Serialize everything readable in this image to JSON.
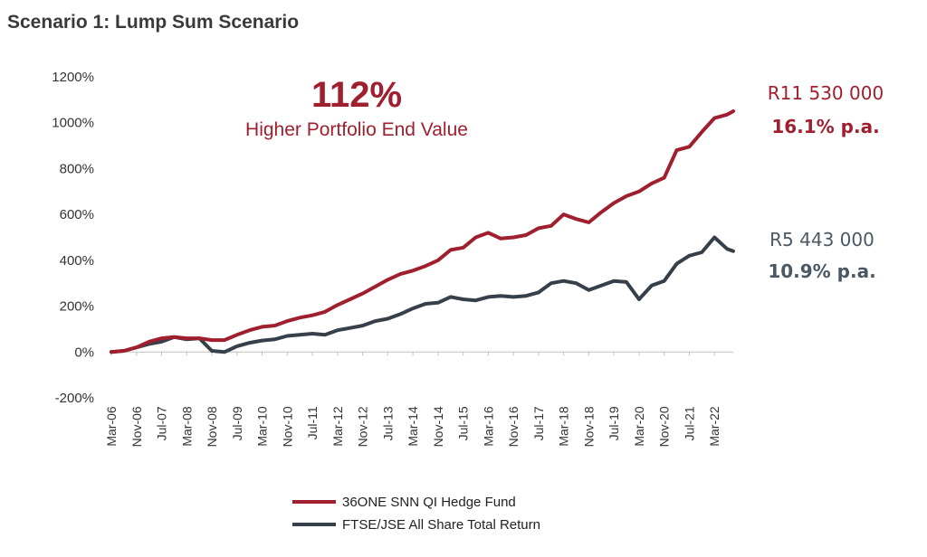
{
  "chart_data": {
    "type": "line",
    "title": "Scenario 1: Lump Sum Scenario",
    "xlabel": "",
    "ylabel": "",
    "ylim": [
      -200,
      1200
    ],
    "ytick_labels": [
      "1200%",
      "1000%",
      "800%",
      "600%",
      "400%",
      "200%",
      "0%",
      "-200%"
    ],
    "ytick_values": [
      1200,
      1000,
      800,
      600,
      400,
      200,
      0,
      -200
    ],
    "x_tick_labels": [
      "Mar-06",
      "Nov-06",
      "Jul-07",
      "Mar-08",
      "Nov-08",
      "Jul-09",
      "Mar-10",
      "Nov-10",
      "Jul-11",
      "Mar-12",
      "Nov-12",
      "Jul-13",
      "Mar-14",
      "Nov-14",
      "Jul-15",
      "Mar-16",
      "Nov-16",
      "Jul-17",
      "Mar-18",
      "Nov-18",
      "Jul-19",
      "Mar-20",
      "Nov-20",
      "Jul-21",
      "Mar-22"
    ],
    "x_range": [
      "Mar-06",
      "Sep-22"
    ],
    "grid": false,
    "legend_position": "bottom",
    "series": [
      {
        "name": "36ONE SNN QI Hedge Fund",
        "color": "#a01f2e",
        "points": [
          [
            "Mar-06",
            0
          ],
          [
            "Jul-06",
            5
          ],
          [
            "Nov-06",
            20
          ],
          [
            "Mar-07",
            45
          ],
          [
            "Jul-07",
            60
          ],
          [
            "Nov-07",
            65
          ],
          [
            "Mar-08",
            60
          ],
          [
            "Jul-08",
            60
          ],
          [
            "Nov-08",
            52
          ],
          [
            "Mar-09",
            52
          ],
          [
            "Jul-09",
            75
          ],
          [
            "Nov-09",
            95
          ],
          [
            "Mar-10",
            110
          ],
          [
            "Jul-10",
            115
          ],
          [
            "Nov-10",
            135
          ],
          [
            "Mar-11",
            150
          ],
          [
            "Jul-11",
            160
          ],
          [
            "Nov-11",
            175
          ],
          [
            "Mar-12",
            205
          ],
          [
            "Jul-12",
            230
          ],
          [
            "Nov-12",
            255
          ],
          [
            "Mar-13",
            285
          ],
          [
            "Jul-13",
            315
          ],
          [
            "Nov-13",
            340
          ],
          [
            "Mar-14",
            355
          ],
          [
            "Jul-14",
            375
          ],
          [
            "Nov-14",
            400
          ],
          [
            "Mar-15",
            445
          ],
          [
            "Jul-15",
            455
          ],
          [
            "Nov-15",
            500
          ],
          [
            "Mar-16",
            520
          ],
          [
            "Jul-16",
            495
          ],
          [
            "Nov-16",
            500
          ],
          [
            "Mar-17",
            510
          ],
          [
            "Jul-17",
            540
          ],
          [
            "Nov-17",
            550
          ],
          [
            "Mar-18",
            600
          ],
          [
            "Jul-18",
            580
          ],
          [
            "Nov-18",
            565
          ],
          [
            "Mar-19",
            610
          ],
          [
            "Jul-19",
            650
          ],
          [
            "Nov-19",
            680
          ],
          [
            "Mar-20",
            700
          ],
          [
            "Jul-20",
            735
          ],
          [
            "Nov-20",
            760
          ],
          [
            "Mar-21",
            880
          ],
          [
            "Jul-21",
            895
          ],
          [
            "Nov-21",
            960
          ],
          [
            "Mar-22",
            1020
          ],
          [
            "Jul-22",
            1035
          ],
          [
            "Sep-22",
            1050
          ]
        ],
        "end_value": "R11 530 000",
        "annual_return": "16.1% p.a."
      },
      {
        "name": "FTSE/JSE All Share Total Return",
        "color": "#36404a",
        "points": [
          [
            "Mar-06",
            0
          ],
          [
            "Jul-06",
            5
          ],
          [
            "Nov-06",
            20
          ],
          [
            "Mar-07",
            35
          ],
          [
            "Jul-07",
            45
          ],
          [
            "Nov-07",
            65
          ],
          [
            "Mar-08",
            55
          ],
          [
            "Jul-08",
            60
          ],
          [
            "Nov-08",
            5
          ],
          [
            "Mar-09",
            0
          ],
          [
            "Jul-09",
            25
          ],
          [
            "Nov-09",
            40
          ],
          [
            "Mar-10",
            50
          ],
          [
            "Jul-10",
            55
          ],
          [
            "Nov-10",
            70
          ],
          [
            "Mar-11",
            75
          ],
          [
            "Jul-11",
            80
          ],
          [
            "Nov-11",
            75
          ],
          [
            "Mar-12",
            95
          ],
          [
            "Jul-12",
            105
          ],
          [
            "Nov-12",
            115
          ],
          [
            "Mar-13",
            135
          ],
          [
            "Jul-13",
            145
          ],
          [
            "Nov-13",
            165
          ],
          [
            "Mar-14",
            190
          ],
          [
            "Jul-14",
            210
          ],
          [
            "Nov-14",
            215
          ],
          [
            "Mar-15",
            240
          ],
          [
            "Jul-15",
            230
          ],
          [
            "Nov-15",
            225
          ],
          [
            "Mar-16",
            240
          ],
          [
            "Jul-16",
            245
          ],
          [
            "Nov-16",
            240
          ],
          [
            "Mar-17",
            245
          ],
          [
            "Jul-17",
            260
          ],
          [
            "Nov-17",
            300
          ],
          [
            "Mar-18",
            310
          ],
          [
            "Jul-18",
            300
          ],
          [
            "Nov-18",
            270
          ],
          [
            "Mar-19",
            290
          ],
          [
            "Jul-19",
            310
          ],
          [
            "Nov-19",
            305
          ],
          [
            "Mar-20",
            230
          ],
          [
            "Jul-20",
            290
          ],
          [
            "Nov-20",
            310
          ],
          [
            "Mar-21",
            385
          ],
          [
            "Jul-21",
            420
          ],
          [
            "Nov-21",
            435
          ],
          [
            "Mar-22",
            500
          ],
          [
            "Jul-22",
            450
          ],
          [
            "Sep-22",
            440
          ]
        ],
        "end_value": "R5 443 000",
        "annual_return": "10.9% p.a."
      }
    ],
    "annotation": {
      "headline": "112%",
      "subtext": "Higher Portfolio End Value"
    }
  }
}
